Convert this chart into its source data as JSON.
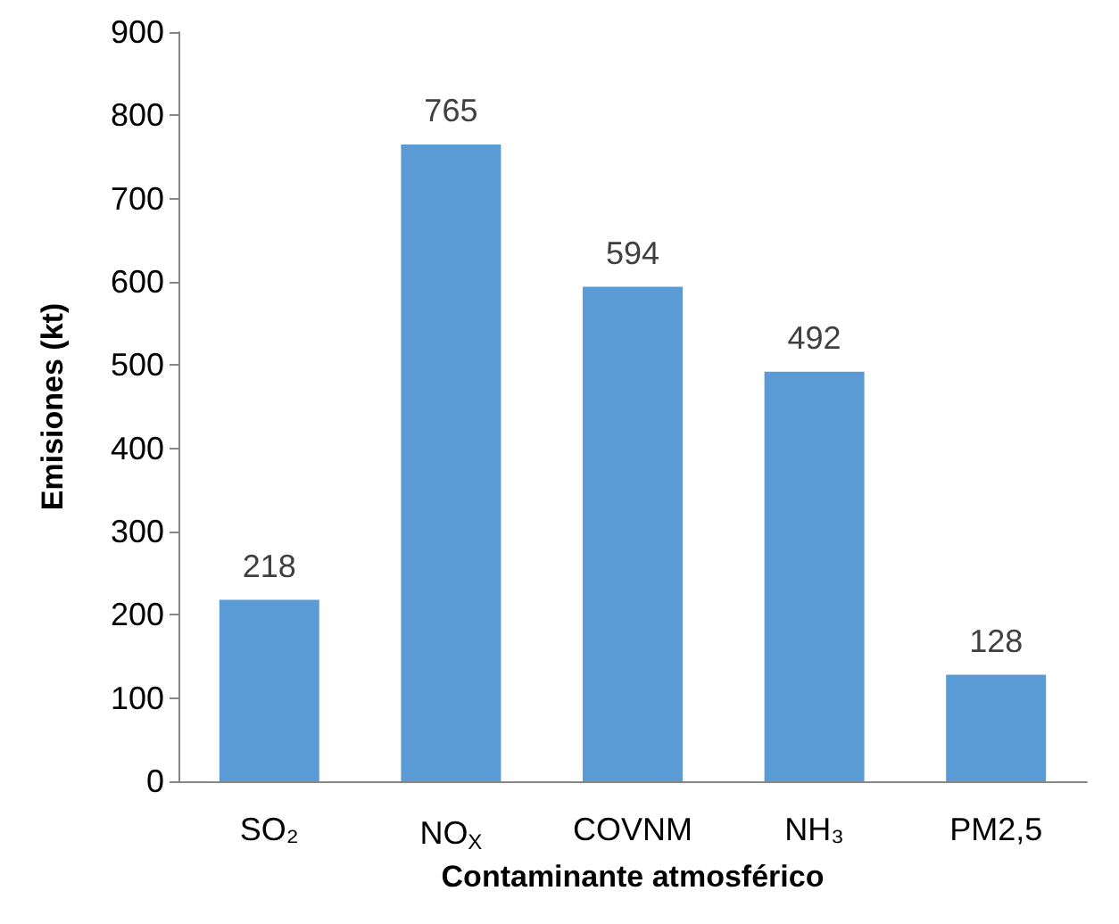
{
  "chart_data": {
    "type": "bar",
    "xlabel": "Contaminante atmosférico",
    "ylabel": "Emisiones (kt)",
    "categories": [
      "SO₂",
      "NO$_{X}$",
      "COVNM",
      "NH₃",
      "PM2,5"
    ],
    "values": [
      218,
      765,
      594,
      492,
      128
    ],
    "color": "#5b9bd5",
    "ylim": [
      0,
      900
    ],
    "yticks": [
      0,
      100,
      200,
      300,
      400,
      500,
      600,
      700,
      800,
      900
    ],
    "grid": false,
    "data_labels": true
  }
}
